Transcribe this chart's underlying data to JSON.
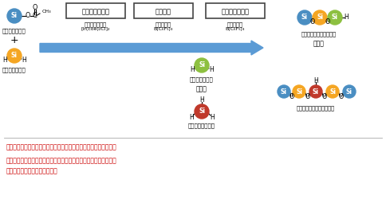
{
  "bg_color": "#ffffff",
  "title_boxes": [
    "ヒドロシリル化",
    "転位反応",
    "脱炭化水素縮合"
  ],
  "catalyst1_line1": "イリジウム触媒",
  "catalyst1_line2": "[Ir(coe)₂Cl]₂",
  "catalyst2_line1": "ホウ素触媒",
  "catalyst2_line2": "B(C₆F₅)₃",
  "catalyst3_line1": "ホウ素触媒",
  "catalyst3_line2": "B(C₆F₅)₃",
  "reactant1_label": "シリルエステル",
  "reactant2_label": "ジヒドロシラン",
  "intermediate1_label": "ジヒドロシラン",
  "intermediate2_label": "または",
  "intermediate3_label": "トリヒドロシラン",
  "product1_label": "構造制御トリシロキサン",
  "product2_label": "または",
  "product3_label": "構造制御ペンタシロキサン",
  "bullet1": "・３つの触媒反応を一つの反応容器で実施可能（ワンポット合成）",
  "bullet2_line1": "・加えるヒドロシランの順番に応じた構造制御オリゴシロキサンを",
  "bullet2_line2": "　ワンポットで一挙に合成可能",
  "color_blue": "#4A8EC2",
  "color_orange": "#F5A623",
  "color_green": "#8DC040",
  "color_red_si": "#C0392B",
  "color_arrow": "#5B9BD5",
  "color_red_text": "#CC0000",
  "color_box_border": "#333333"
}
